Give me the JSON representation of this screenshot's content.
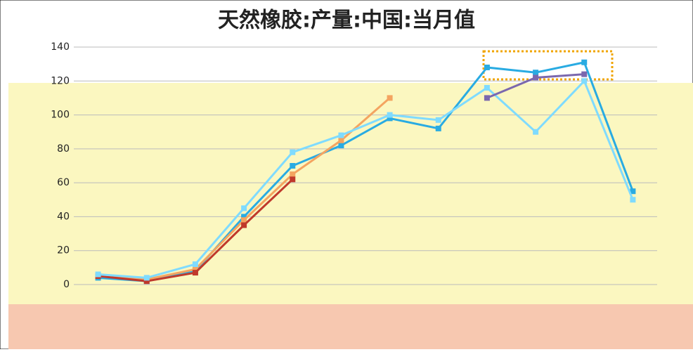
{
  "chart_data": {
    "type": "line",
    "title": "天然橡胶:产量:中国:当月值",
    "categories": [
      null,
      null,
      null,
      null,
      null,
      null,
      null,
      null,
      null,
      null,
      null,
      null
    ],
    "series": [
      {
        "color": "#29abe2",
        "values": [
          4,
          2,
          8,
          40,
          70,
          82,
          98,
          92,
          128,
          125,
          131,
          55
        ]
      },
      {
        "color": "#f4a460",
        "values": [
          5,
          3,
          9,
          38,
          65,
          85,
          110,
          null,
          null,
          null,
          null,
          null
        ]
      },
      {
        "color": "#c0392b",
        "values": [
          5,
          2,
          7,
          35,
          62,
          null,
          null,
          null,
          null,
          null,
          null,
          null
        ]
      },
      {
        "color": "#7fdbff",
        "values": [
          6,
          4,
          12,
          45,
          78,
          88,
          100,
          97,
          116,
          90,
          120,
          50
        ]
      },
      {
        "color": "#7b68ae",
        "values": [
          null,
          null,
          null,
          null,
          null,
          null,
          null,
          null,
          110,
          122,
          124,
          null
        ]
      }
    ],
    "ylim": [
      0,
      140
    ],
    "yticks": [
      0,
      20,
      40,
      60,
      80,
      100,
      120,
      140
    ],
    "grid": true
  }
}
